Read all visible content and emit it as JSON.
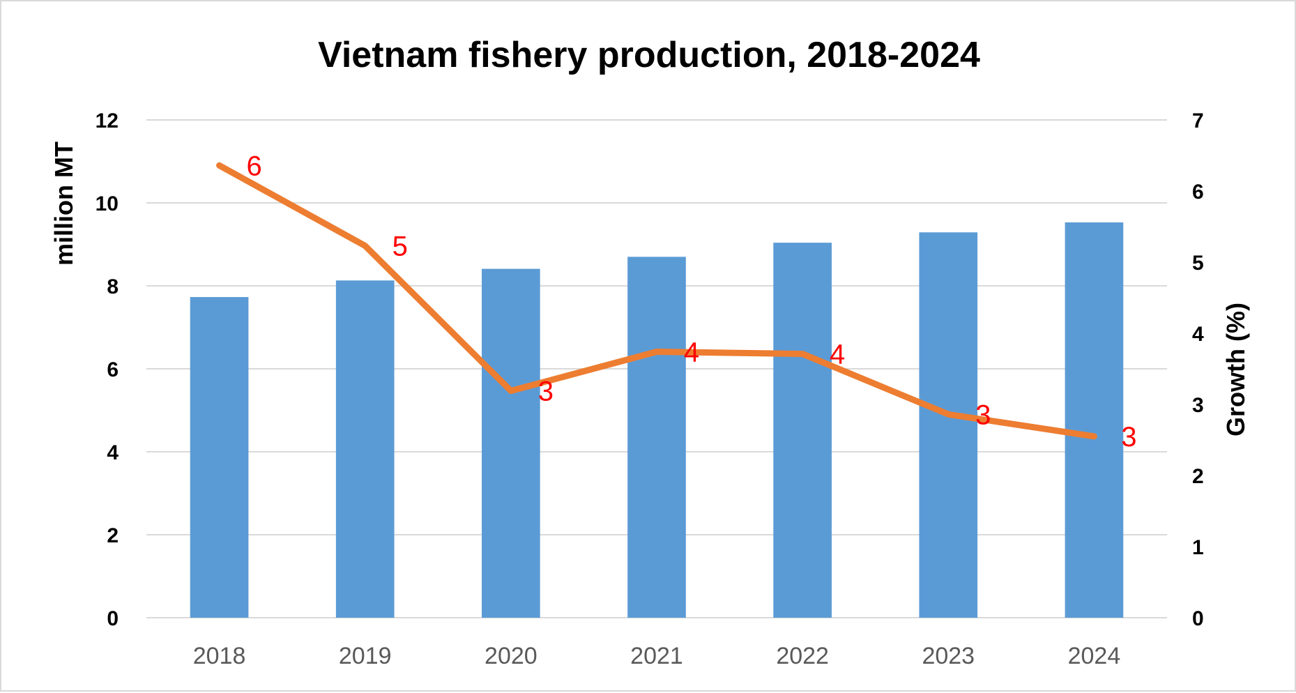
{
  "chart_data": {
    "type": "bar+line",
    "title": "Vietnam fishery production, 2018-2024",
    "categories": [
      "2018",
      "2019",
      "2020",
      "2021",
      "2022",
      "2023",
      "2024"
    ],
    "series": [
      {
        "type": "bar",
        "axis": "left",
        "color": "#5b9bd5",
        "values": [
          7.73,
          8.13,
          8.41,
          8.7,
          9.04,
          9.29,
          9.53
        ]
      },
      {
        "type": "line",
        "axis": "right",
        "color": "#ed7d31",
        "values": [
          6.36,
          5.23,
          3.19,
          3.74,
          3.71,
          2.86,
          2.55
        ],
        "data_labels": [
          "6",
          "5",
          "3",
          "4",
          "4",
          "3",
          "3"
        ],
        "data_label_color": "#ff0000"
      }
    ],
    "y_left": {
      "label": "million MT",
      "ylim": [
        0,
        12
      ],
      "ticks": [
        "0",
        "2",
        "4",
        "6",
        "8",
        "10",
        "12"
      ]
    },
    "y_right": {
      "label": "Growth (%)",
      "ylim": [
        0,
        7
      ],
      "ticks": [
        "0",
        "1",
        "2",
        "3",
        "4",
        "5",
        "6",
        "7"
      ]
    },
    "grid": true,
    "legend": "none"
  }
}
